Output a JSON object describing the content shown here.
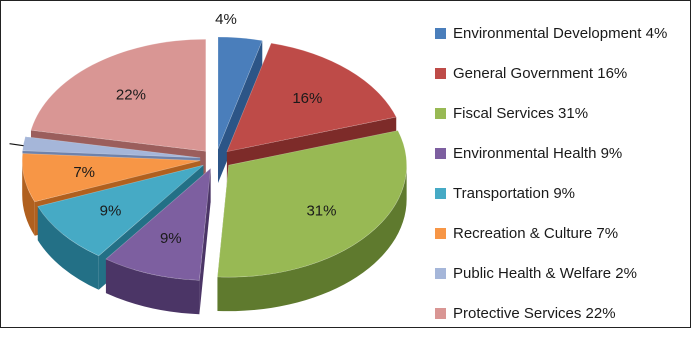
{
  "chart_data": {
    "type": "pie",
    "style": "3d-exploded",
    "legend_position": "right",
    "series": [
      {
        "name": "Environmental Development",
        "value": 4,
        "label": "4%",
        "legend": "Environmental Development 4%",
        "color": "#4a7ebb",
        "side": "#2c5587"
      },
      {
        "name": "General Government",
        "value": 16,
        "label": "16%",
        "legend": "General Government 16%",
        "color": "#be4b48",
        "side": "#7d2b29"
      },
      {
        "name": "Fiscal Services",
        "value": 31,
        "label": "31%",
        "legend": "Fiscal Services 31%",
        "color": "#98b954",
        "side": "#5f7a2e"
      },
      {
        "name": "Environmental Health",
        "value": 9,
        "label": "9%",
        "legend": "Environmental Health 9%",
        "color": "#7d5fa0",
        "side": "#4b3566"
      },
      {
        "name": "Transportation",
        "value": 9,
        "label": "9%",
        "legend": "Transportation 9%",
        "color": "#46aac5",
        "side": "#237086"
      },
      {
        "name": "Recreation & Culture",
        "value": 7,
        "label": "7%",
        "legend": "Recreation & Culture 7%",
        "color": "#f79646",
        "side": "#b0601f"
      },
      {
        "name": "Public Health & Welfare",
        "value": 2,
        "label": "2%",
        "legend": "Public Health & Welfare 2%",
        "color": "#a5b6d9",
        "side": "#6f82aa"
      },
      {
        "name": "Protective Services",
        "value": 22,
        "label": "22%",
        "legend": "Protective Services 22%",
        "color": "#d99694",
        "side": "#9b5e5c"
      }
    ]
  }
}
